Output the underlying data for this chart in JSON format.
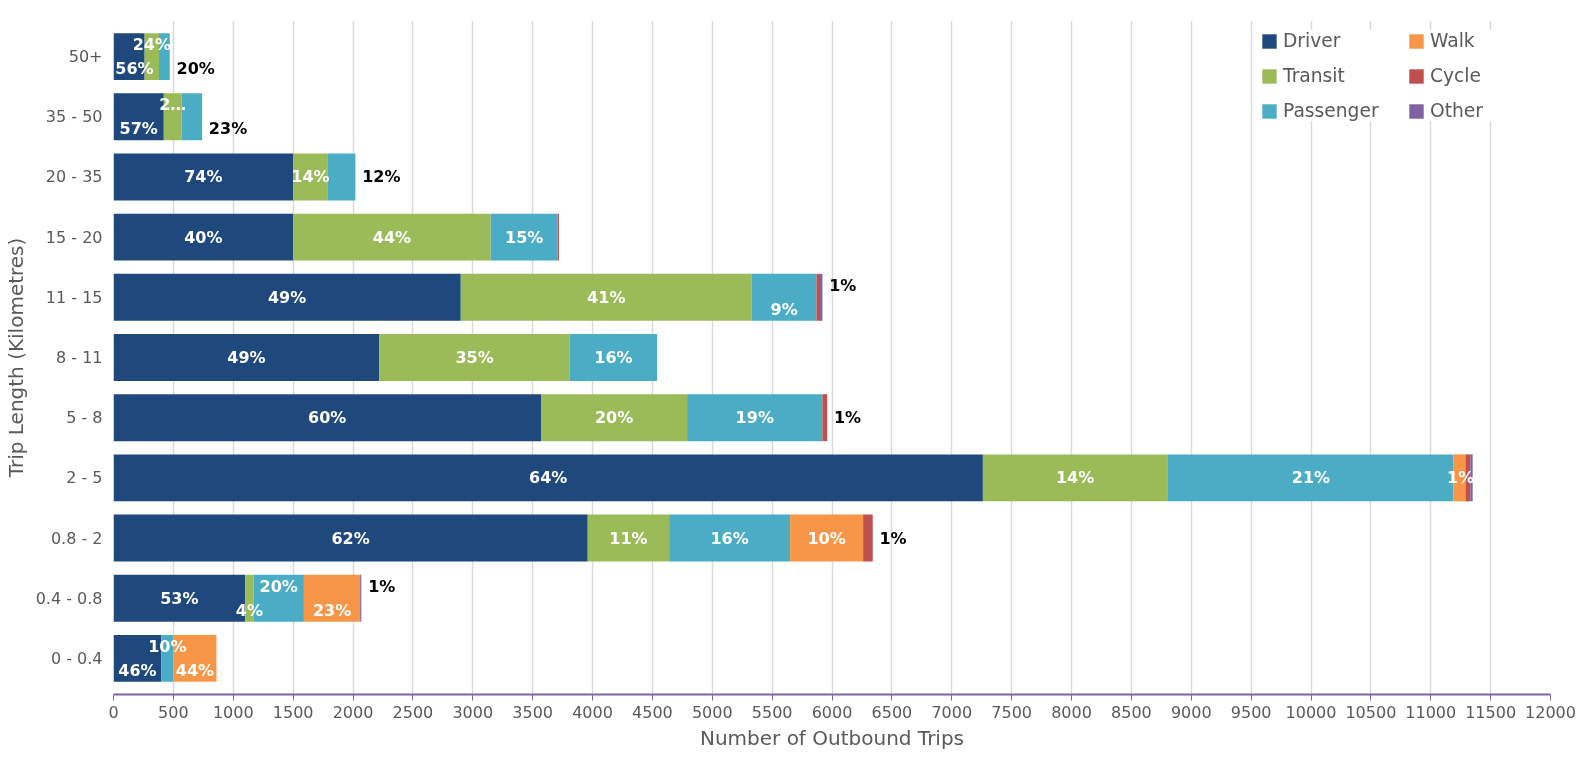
{
  "chart_data": {
    "type": "bar",
    "orientation": "horizontal",
    "stacked": true,
    "xlabel": "Number of Outbound Trips",
    "ylabel": "Trip Length (Kilometres)",
    "categories": [
      "50+",
      "35 - 50",
      "20 - 35",
      "15 - 20",
      "11 - 15",
      "8 - 11",
      "5 - 8",
      "2 - 5",
      "0.8 - 2",
      "0.4 - 0.8",
      "0 - 0.4"
    ],
    "series": [
      {
        "name": "Driver",
        "color": "#1f497d",
        "values": [
          260,
          420,
          1500,
          1500,
          2900,
          2220,
          3570,
          7260,
          3960,
          1100,
          400
        ]
      },
      {
        "name": "Transit",
        "color": "#9bbb59",
        "values": [
          120,
          150,
          290,
          1650,
          2430,
          1590,
          1220,
          1540,
          680,
          70,
          0
        ]
      },
      {
        "name": "Passenger",
        "color": "#4bacc6",
        "values": [
          90,
          170,
          230,
          560,
          540,
          730,
          1130,
          2390,
          1010,
          420,
          100
        ]
      },
      {
        "name": "Walk",
        "color": "#f79646",
        "values": [
          0,
          0,
          0,
          0,
          0,
          0,
          0,
          100,
          610,
          470,
          360
        ]
      },
      {
        "name": "Cycle",
        "color": "#c0504d",
        "values": [
          0,
          0,
          0,
          10,
          30,
          0,
          40,
          40,
          80,
          0,
          0
        ]
      },
      {
        "name": "Other",
        "color": "#8064a2",
        "values": [
          0,
          0,
          0,
          0,
          20,
          0,
          0,
          20,
          0,
          10,
          0
        ]
      }
    ],
    "annotations": [
      {
        "text": "56%",
        "x": 175,
        "y": "50+"
      },
      {
        "text": "24%",
        "x": 320,
        "y": "50+"
      },
      {
        "text": "20%",
        "x": 470,
        "y": "50+"
      },
      {
        "text": "57%",
        "x": 210,
        "y": "35 - 50"
      },
      {
        "text": "2…",
        "x": 495,
        "y": "35 - 50"
      },
      {
        "text": "23%",
        "x": 740,
        "y": "35 - 50"
      },
      {
        "text": "74%",
        "x": 750,
        "y": "20 - 35"
      },
      {
        "text": "14%",
        "x": 1645,
        "y": "20 - 35"
      },
      {
        "text": "12%",
        "x": 2020,
        "y": "20 - 35"
      },
      {
        "text": "40%",
        "x": 750,
        "y": "15 - 20"
      },
      {
        "text": "44%",
        "x": 2325,
        "y": "15 - 20"
      },
      {
        "text": "15%",
        "x": 3430,
        "y": "15 - 20"
      },
      {
        "text": "49%",
        "x": 1450,
        "y": "11 - 15"
      },
      {
        "text": "41%",
        "x": 4115,
        "y": "11 - 15"
      },
      {
        "text": "9%",
        "x": 5600,
        "y": "11 - 15"
      },
      {
        "text": "1%",
        "x": 5920,
        "y": "11 - 15"
      },
      {
        "text": "49%",
        "x": 1110,
        "y": "8 - 11"
      },
      {
        "text": "35%",
        "x": 3015,
        "y": "8 - 11"
      },
      {
        "text": "16%",
        "x": 4175,
        "y": "8 - 11"
      },
      {
        "text": "60%",
        "x": 1785,
        "y": "5 - 8"
      },
      {
        "text": "20%",
        "x": 4180,
        "y": "5 - 8"
      },
      {
        "text": "19%",
        "x": 5355,
        "y": "5 - 8"
      },
      {
        "text": "1%",
        "x": 5960,
        "y": "5 - 8"
      },
      {
        "text": "64%",
        "x": 3630,
        "y": "2 - 5"
      },
      {
        "text": "14%",
        "x": 8030,
        "y": "2 - 5"
      },
      {
        "text": "21%",
        "x": 10000,
        "y": "2 - 5"
      },
      {
        "text": "1%",
        "x": 11250,
        "y": "2 - 5"
      },
      {
        "text": "62%",
        "x": 1980,
        "y": "0.8 - 2"
      },
      {
        "text": "11%",
        "x": 4300,
        "y": "0.8 - 2"
      },
      {
        "text": "16%",
        "x": 5145,
        "y": "0.8 - 2"
      },
      {
        "text": "10%",
        "x": 5955,
        "y": "0.8 - 2"
      },
      {
        "text": "1%",
        "x": 6340,
        "y": "0.8 - 2"
      },
      {
        "text": "53%",
        "x": 550,
        "y": "0.4 - 0.8"
      },
      {
        "text": "4%",
        "x": 1135,
        "y": "0.4 - 0.8"
      },
      {
        "text": "20%",
        "x": 1380,
        "y": "0.4 - 0.8"
      },
      {
        "text": "23%",
        "x": 1825,
        "y": "0.4 - 0.8"
      },
      {
        "text": "1%",
        "x": 2070,
        "y": "0.4 - 0.8"
      },
      {
        "text": "46%",
        "x": 200,
        "y": "0 - 0.4"
      },
      {
        "text": "10%",
        "x": 450,
        "y": "0 - 0.4"
      },
      {
        "text": "44%",
        "x": 680,
        "y": "0 - 0.4"
      }
    ],
    "xlim": [
      0,
      12000
    ],
    "xticks": [
      0,
      500,
      1000,
      1500,
      2000,
      2500,
      3000,
      3500,
      4000,
      4500,
      5000,
      5500,
      6000,
      6500,
      7000,
      7500,
      8000,
      8500,
      9000,
      9500,
      10000,
      10500,
      11000,
      11500,
      12000
    ],
    "grid": "x",
    "legend": "top right"
  }
}
